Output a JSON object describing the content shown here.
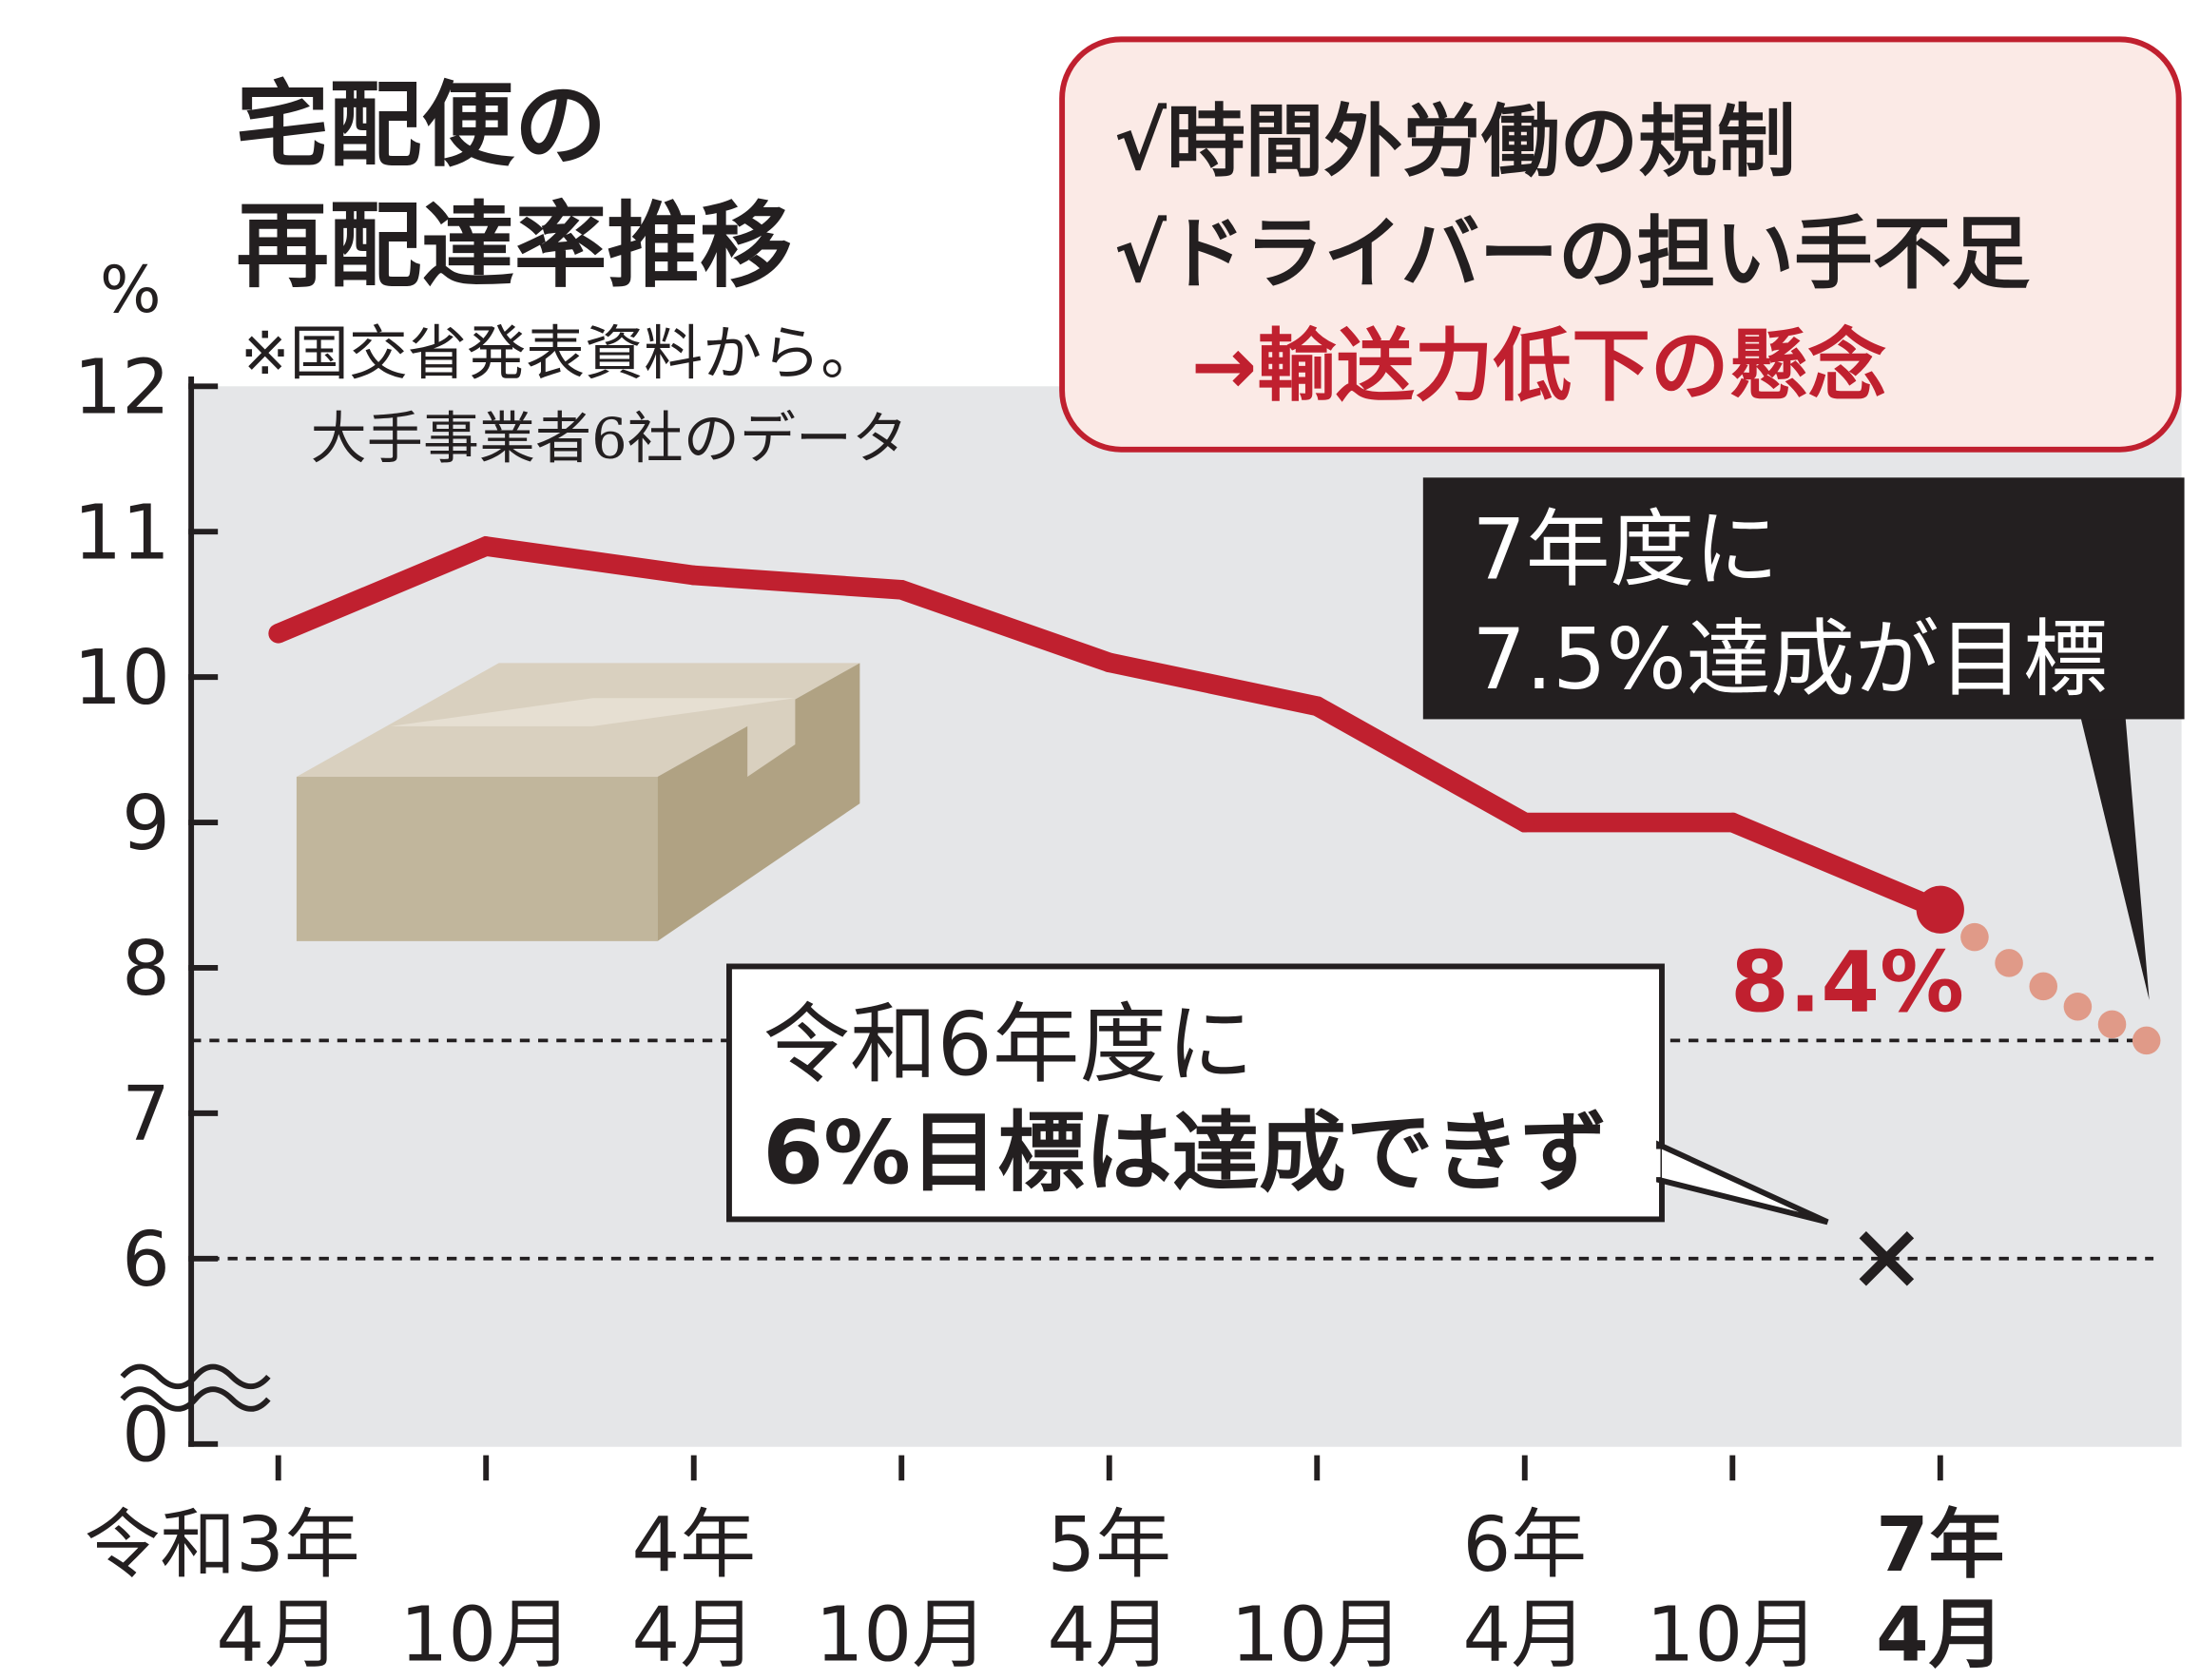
{
  "title_lines": [
    "宅配便の",
    "再配達率推移"
  ],
  "source_note": "※国交省発表資料から。",
  "data_note": "大手事業者6社のデータ",
  "callout_box": {
    "lines": [
      "√時間外労働の規制",
      "√ドライバーの担い手不足",
      "→輸送力低下の懸念"
    ],
    "border_color": "#c0202f",
    "fill_color": "#fbeae6"
  },
  "target_box": {
    "lines": [
      "7年度に",
      "7.5%達成が目標"
    ]
  },
  "missed_box": {
    "lines": [
      "令和6年度に",
      "6%目標は達成できず"
    ]
  },
  "chart_data": {
    "type": "line",
    "unit_label": "%",
    "categories": [
      "令和3年 4月",
      "10月",
      "4年 4月",
      "10月",
      "5年 4月",
      "10月",
      "6年 4月",
      "10月",
      "7年 4月"
    ],
    "x_tick_labels": [
      [
        "令和3年",
        "4月"
      ],
      [
        "",
        "10月"
      ],
      [
        "4年",
        "4月"
      ],
      [
        "",
        "10月"
      ],
      [
        "5年",
        "4月"
      ],
      [
        "",
        "10月"
      ],
      [
        "6年",
        "4月"
      ],
      [
        "",
        "10月"
      ],
      [
        "7年",
        "4月"
      ]
    ],
    "series": [
      {
        "values": [
          10.3,
          10.9,
          10.7,
          10.6,
          10.1,
          9.8,
          9.0,
          9.0,
          8.4
        ],
        "color": "#c0202f"
      }
    ],
    "projection": {
      "from": 8.4,
      "to": 7.5,
      "color": "#e09a88"
    },
    "last_value_label": "8.4%",
    "y_ticks": [
      "0",
      "6",
      "7",
      "8",
      "9",
      "10",
      "11",
      "12"
    ],
    "ylim": [
      6,
      12
    ],
    "y_axis_break": true,
    "reference_lines": [
      7.5,
      6
    ],
    "missed_target_marker": {
      "value": 6,
      "symbol": "×"
    },
    "grid": false,
    "background": "#e5e6e8"
  }
}
